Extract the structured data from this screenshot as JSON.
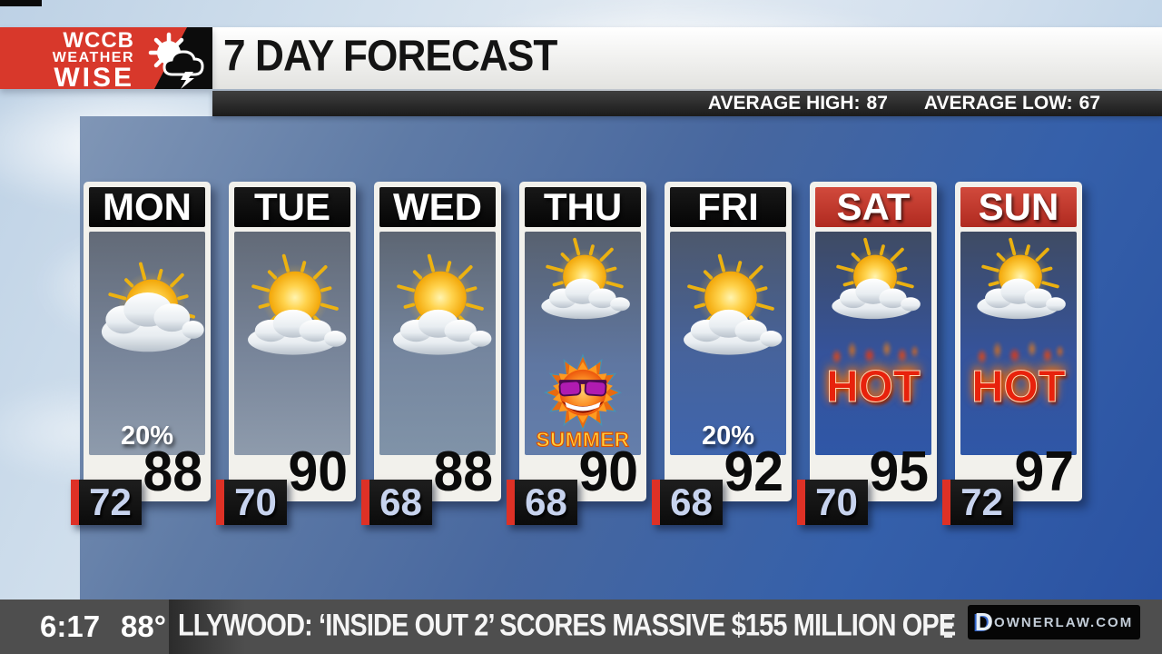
{
  "logo": {
    "line1": "WCCB",
    "line2": "WEATHER",
    "line3": "WISE",
    "icon": "sun-storm-cloud-lightning-icon"
  },
  "header": {
    "title": "7 DAY FORECAST",
    "avg_high_label": "AVERAGE HIGH:",
    "avg_high_value": "87",
    "avg_low_label": "AVERAGE LOW:",
    "avg_low_value": "67"
  },
  "forecast": {
    "summer_label": "SUMMER",
    "hot_label": "HOT",
    "days": [
      {
        "name": "MON",
        "header_style": "black",
        "icon": "mostly-cloudy",
        "pop": "20%",
        "high": "88",
        "low": "72",
        "extra": null
      },
      {
        "name": "TUE",
        "header_style": "black",
        "icon": "sun-and-cloud",
        "pop": null,
        "high": "90",
        "low": "70",
        "extra": null
      },
      {
        "name": "WED",
        "header_style": "black",
        "icon": "sun-and-cloud",
        "pop": null,
        "high": "88",
        "low": "68",
        "extra": null
      },
      {
        "name": "THU",
        "header_style": "black",
        "icon": "sun-and-cloud",
        "pop": null,
        "high": "90",
        "low": "68",
        "extra": "summer"
      },
      {
        "name": "FRI",
        "header_style": "black",
        "icon": "sun-and-cloud",
        "pop": "20%",
        "high": "92",
        "low": "68",
        "extra": null
      },
      {
        "name": "SAT",
        "header_style": "red",
        "icon": "sun-and-cloud",
        "pop": null,
        "high": "95",
        "low": "70",
        "extra": "hot"
      },
      {
        "name": "SUN",
        "header_style": "red",
        "icon": "sun-and-cloud",
        "pop": null,
        "high": "97",
        "low": "72",
        "extra": "hot"
      }
    ]
  },
  "ticker": {
    "time": "6:17",
    "temp": "88°",
    "headline": "LLYWOOD: ‘INSIDE OUT 2’ SCORES MASSIVE $155 MILLION OPE",
    "sponsor": "DownerLaw.com",
    "sponsor_initial": "D",
    "sponsor_rest": "ownerLaw.com"
  },
  "colors": {
    "logo_red": "#d8382b",
    "weekend_header_red": "#c43529",
    "day_header_black": "#0e0e0e",
    "low_accent_red": "#de3126",
    "low_text_blue": "#c7d3ee",
    "panel_blue_top": "#8096b6",
    "panel_blue_bottom": "#2a52a2",
    "ticker_gray": "#4e4e4e",
    "hot_red": "#e8220c"
  }
}
